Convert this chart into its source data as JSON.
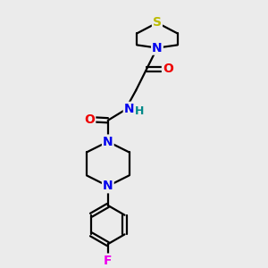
{
  "background_color": "#ebebeb",
  "atom_colors": {
    "C": "#000000",
    "N": "#0000ee",
    "O": "#ee0000",
    "S": "#bbbb00",
    "F": "#ee00ee",
    "H": "#008888"
  },
  "bond_color": "#000000",
  "bond_width": 1.6,
  "figsize": [
    3.0,
    3.0
  ],
  "dpi": 100,
  "xlim": [
    0,
    10
  ],
  "ylim": [
    0,
    13
  ]
}
